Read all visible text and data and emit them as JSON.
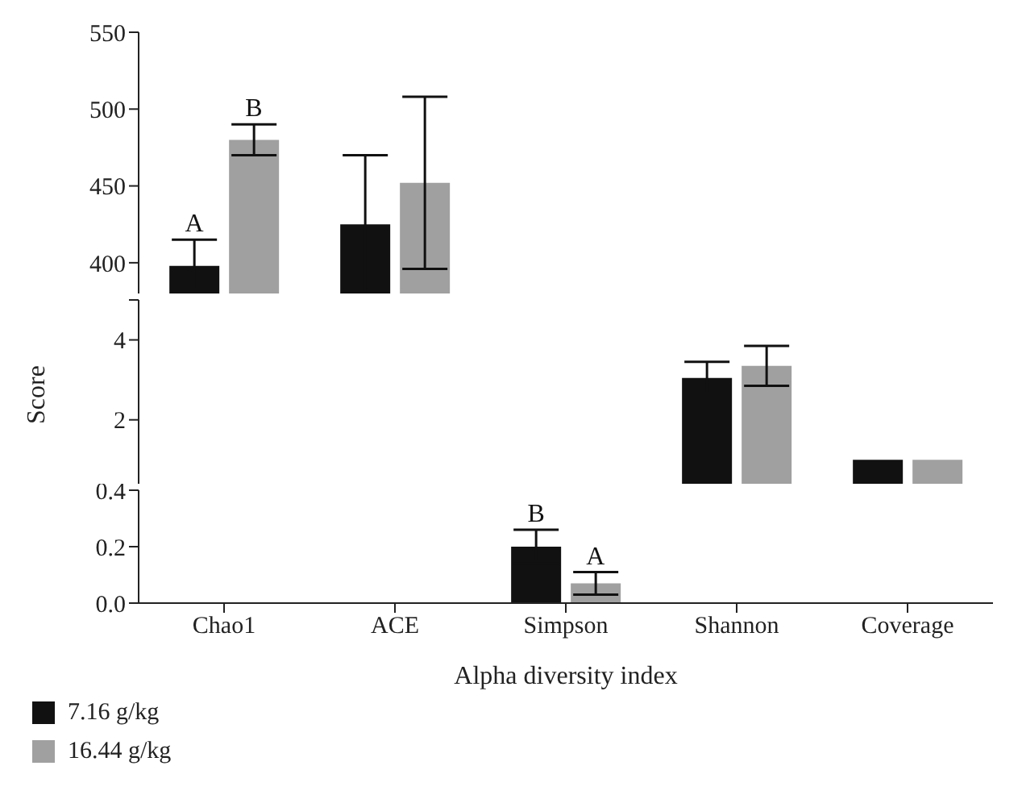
{
  "chart_data": [
    {
      "type": "bar",
      "categories": [
        "Chao1",
        "ACE",
        "Simpson",
        "Shannon",
        "Coverage"
      ],
      "tick_labels": "y",
      "ylim": [
        380,
        550
      ],
      "yticks": [
        400,
        450,
        500,
        550
      ],
      "series": [
        {
          "color": "#111111",
          "values": [
            398,
            425,
            null,
            null,
            null
          ],
          "errors": [
            17,
            45,
            null,
            null,
            null
          ]
        },
        {
          "color": "#a0a0a0",
          "values": [
            480,
            452,
            null,
            null,
            null
          ],
          "errors": [
            10,
            56,
            null,
            null,
            null
          ]
        }
      ],
      "annotations": [
        {
          "text": "A",
          "x": "Chao1",
          "y": 398
        },
        {
          "text": "B",
          "x": "Chao1",
          "y": 480
        }
      ]
    },
    {
      "type": "bar",
      "categories": [
        "Chao1",
        "ACE",
        "Simpson",
        "Shannon",
        "Coverage"
      ],
      "tick_labels": "y",
      "ylabel": "Score",
      "ylim": [
        0.4,
        5
      ],
      "yticks": [
        2,
        4,
        {
          "value": 5,
          "label": null
        }
      ],
      "series": [
        {
          "color": "#111111",
          "values": [
            null,
            null,
            null,
            3.05,
            1
          ],
          "errors": [
            null,
            null,
            null,
            0.4,
            null
          ]
        },
        {
          "color": "#a0a0a0",
          "values": [
            null,
            null,
            null,
            3.35,
            1
          ],
          "errors": [
            null,
            null,
            null,
            0.5,
            null
          ]
        }
      ]
    },
    {
      "type": "bar",
      "categories": [
        "Chao1",
        "ACE",
        "Simpson",
        "Shannon",
        "Coverage"
      ],
      "xlabel": "Alpha diversity index",
      "ylim": [
        0,
        0.4
      ],
      "yticks": [
        {
          "value": 0,
          "label": "0.0"
        },
        {
          "value": 0.2,
          "label": "0.2"
        },
        {
          "value": 0.4,
          "label": "0.4"
        }
      ],
      "legend": "bottom left",
      "series": [
        {
          "name": "7.16 g/kg",
          "color": "#111111",
          "values": [
            null,
            null,
            0.2,
            null,
            null
          ],
          "errors": [
            null,
            null,
            0.06,
            null,
            null
          ]
        },
        {
          "name": "16.44 g/kg",
          "color": "#a0a0a0",
          "values": [
            null,
            null,
            0.07,
            null,
            null
          ],
          "errors": [
            null,
            null,
            0.04,
            null,
            null
          ]
        }
      ],
      "annotations": [
        {
          "text": "B",
          "x": "Simpson",
          "y": 0.2
        },
        {
          "text": "A",
          "x": "Simpson",
          "y": 0.07
        }
      ]
    }
  ]
}
